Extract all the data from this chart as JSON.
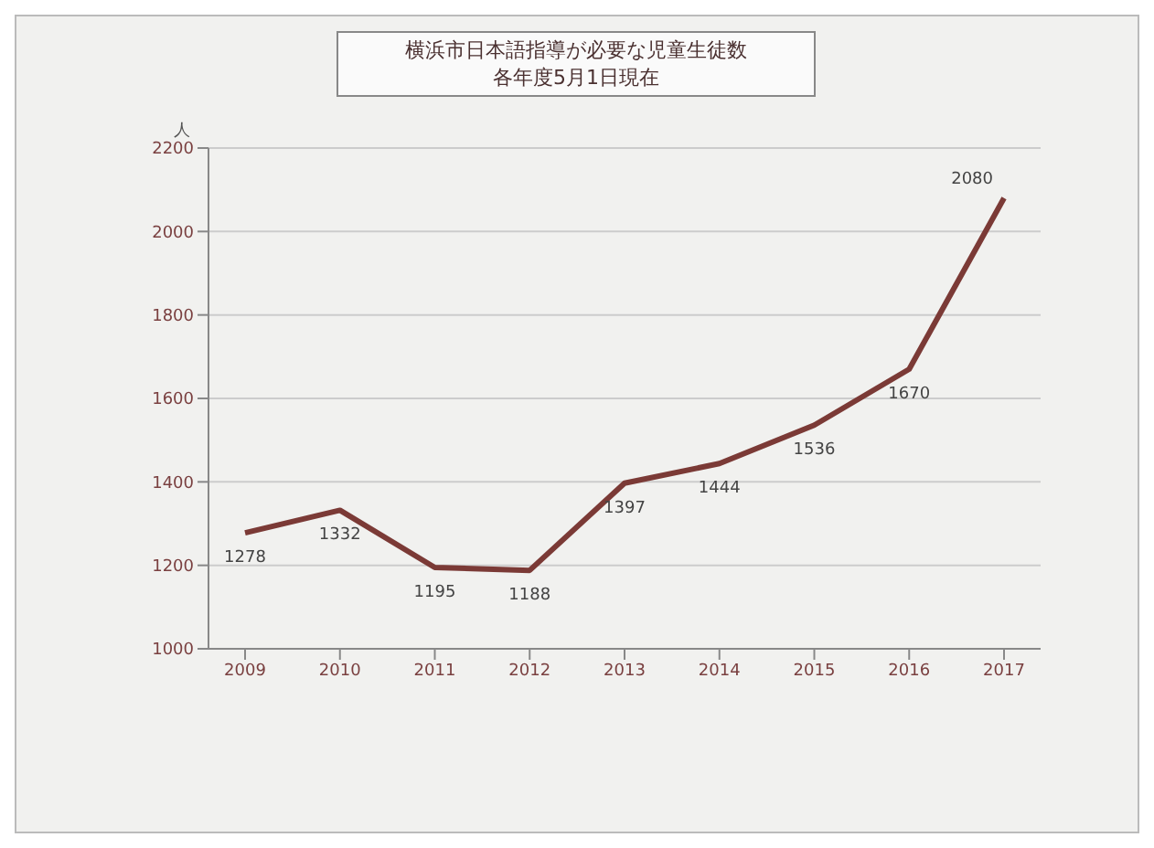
{
  "chart_data": {
    "type": "line",
    "title": "横浜市日本語指導が必要な児童生徒数",
    "subtitle": "各年度5月1日現在",
    "ylabel": "人",
    "categories": [
      "2009",
      "2010",
      "2011",
      "2012",
      "2013",
      "2014",
      "2015",
      "2016",
      "2017"
    ],
    "series": [
      {
        "color": "#7b3a36",
        "values": [
          1278,
          1332,
          1195,
          1188,
          1397,
          1444,
          1536,
          1670,
          2080
        ]
      }
    ],
    "ylim": [
      1000,
      2200
    ],
    "yticks": [
      1000,
      1200,
      1400,
      1600,
      1800,
      2000,
      2200
    ],
    "grid": "y",
    "data_labels": true,
    "marker": "none",
    "line_style": "solid"
  }
}
